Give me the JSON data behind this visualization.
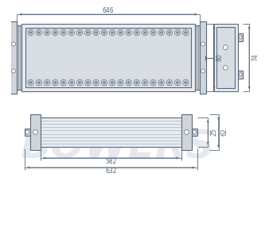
{
  "bg_color": "#ffffff",
  "line_color": "#5a6a7a",
  "dim_color": "#5a6a7a",
  "watermark_text": "BOWERS",
  "dim_646": "646",
  "dim_582": "582",
  "dim_632": "632",
  "dim_80": "80",
  "dim_74": "74",
  "dim_62": "62",
  "dim_25": "25",
  "n_led_cols": 20,
  "n_led_rows": 2,
  "led_r": 3.8,
  "body_fc": "#e8ecf0",
  "lens_fc": "#d8dde3",
  "bracket_fc": "#d0d5db",
  "fin_color": "#9aaabb",
  "wm_color": "#ccd4e0",
  "wm_alpha": 0.5
}
